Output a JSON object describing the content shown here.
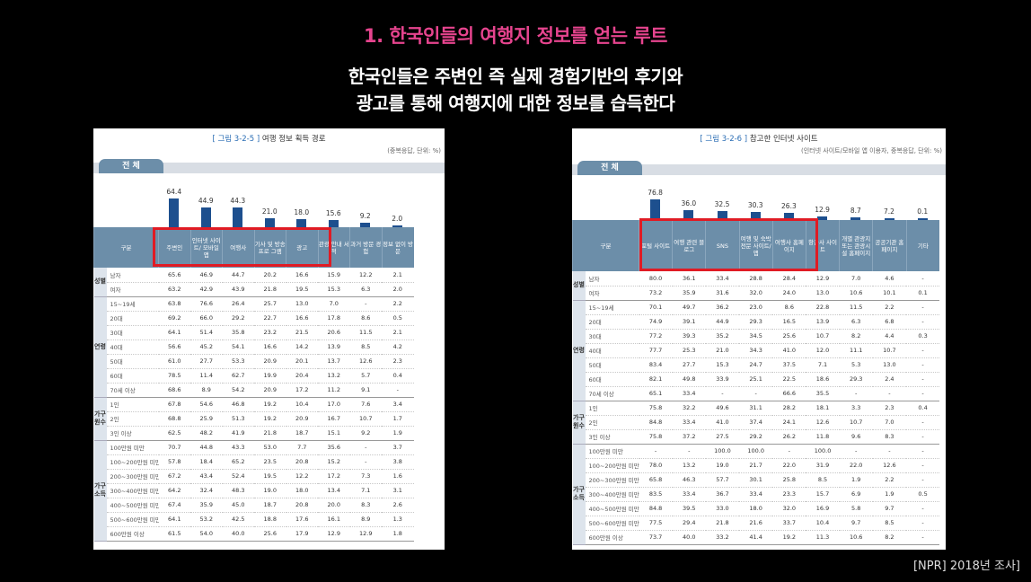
{
  "slide": {
    "title": "1. 한국인들의 여행지 정보를 얻는 루트",
    "subtitle_line1": "한국인들은 주변인 즉 실제 경험기반의 후기와",
    "subtitle_line2": "광고를 통해 여행지에 대한 정보를 습득한다",
    "source": "[NPR] 2018년 조사]"
  },
  "accent_colors": {
    "title": "#e6448e",
    "bar": "#1d4f8e",
    "header": "#6c8ea9",
    "highlight": "#e01b24"
  },
  "left": {
    "fig_num": "[ 그림 3-2-5 ]",
    "fig_title": "여행 정보 획득 경로",
    "unit": "(중복응답, 단위: %)",
    "tab": "전 체",
    "header_label": "구분",
    "columns": [
      "주변인",
      "인터넷 사이트/ 모바일 앱",
      "여행사",
      "기사 및 방송 프로 그램",
      "광고",
      "관광 안내 서적",
      "과거 방문 경험",
      "정보 없이 방문"
    ],
    "totals": [
      "64.4",
      "44.9",
      "44.3",
      "21.0",
      "18.0",
      "15.6",
      "9.2",
      "2.0"
    ],
    "groups": [
      {
        "label": "성별",
        "rows": [
          {
            "label": "남자",
            "values": [
              "65.6",
              "46.9",
              "44.7",
              "20.2",
              "16.6",
              "15.9",
              "12.2",
              "2.1"
            ]
          },
          {
            "label": "여자",
            "values": [
              "63.2",
              "42.9",
              "43.9",
              "21.8",
              "19.5",
              "15.3",
              "6.3",
              "2.0"
            ]
          }
        ]
      },
      {
        "label": "연령",
        "rows": [
          {
            "label": "15~19세",
            "values": [
              "63.8",
              "76.6",
              "26.4",
              "25.7",
              "13.0",
              "7.0",
              "-",
              "2.2"
            ]
          },
          {
            "label": "20대",
            "values": [
              "69.2",
              "66.0",
              "29.2",
              "22.7",
              "16.6",
              "17.8",
              "8.6",
              "0.5"
            ]
          },
          {
            "label": "30대",
            "values": [
              "64.1",
              "51.4",
              "35.8",
              "23.2",
              "21.5",
              "20.6",
              "11.5",
              "2.1"
            ]
          },
          {
            "label": "40대",
            "values": [
              "56.6",
              "45.2",
              "54.1",
              "16.6",
              "14.2",
              "13.9",
              "8.5",
              "4.2"
            ]
          },
          {
            "label": "50대",
            "values": [
              "61.0",
              "27.7",
              "53.3",
              "20.9",
              "20.1",
              "13.7",
              "12.6",
              "2.3"
            ]
          },
          {
            "label": "60대",
            "values": [
              "78.5",
              "11.4",
              "62.7",
              "19.9",
              "20.4",
              "13.2",
              "5.7",
              "0.4"
            ]
          },
          {
            "label": "70세 이상",
            "values": [
              "68.6",
              "8.9",
              "54.2",
              "20.9",
              "17.2",
              "11.2",
              "9.1",
              "-"
            ]
          }
        ]
      },
      {
        "label": "가구원수",
        "rows": [
          {
            "label": "1인",
            "values": [
              "67.8",
              "54.6",
              "46.8",
              "19.2",
              "10.4",
              "17.0",
              "7.6",
              "3.4"
            ]
          },
          {
            "label": "2인",
            "values": [
              "68.8",
              "25.9",
              "51.3",
              "19.2",
              "20.9",
              "16.7",
              "10.7",
              "1.7"
            ]
          },
          {
            "label": "3인 이상",
            "values": [
              "62.5",
              "48.2",
              "41.9",
              "21.8",
              "18.7",
              "15.1",
              "9.2",
              "1.9"
            ]
          }
        ]
      },
      {
        "label": "가구소득",
        "rows": [
          {
            "label": "100만원 미만",
            "values": [
              "70.7",
              "44.8",
              "43.3",
              "53.0",
              "7.7",
              "35.6",
              "-",
              "3.7"
            ]
          },
          {
            "label": "100~200만원 미만",
            "values": [
              "57.8",
              "18.4",
              "65.2",
              "23.5",
              "20.8",
              "15.2",
              "-",
              "3.8"
            ]
          },
          {
            "label": "200~300만원 미만",
            "values": [
              "67.2",
              "43.4",
              "52.4",
              "19.5",
              "12.2",
              "17.2",
              "7.3",
              "1.6"
            ]
          },
          {
            "label": "300~400만원 미만",
            "values": [
              "64.2",
              "32.4",
              "48.3",
              "19.0",
              "18.0",
              "13.4",
              "7.1",
              "3.1"
            ]
          },
          {
            "label": "400~500만원 미만",
            "values": [
              "67.4",
              "35.9",
              "45.0",
              "18.7",
              "20.8",
              "20.0",
              "8.3",
              "2.6"
            ]
          },
          {
            "label": "500~600만원 미만",
            "values": [
              "64.1",
              "53.2",
              "42.5",
              "18.8",
              "17.6",
              "16.1",
              "8.9",
              "1.3"
            ]
          },
          {
            "label": "600만원 이상",
            "values": [
              "61.5",
              "54.0",
              "40.0",
              "25.6",
              "17.9",
              "12.9",
              "12.9",
              "1.8"
            ]
          }
        ]
      }
    ]
  },
  "right": {
    "fig_num": "[ 그림 3-2-6 ]",
    "fig_title": "참고한 인터넷 사이트",
    "unit": "(인터넷 사이트/모바일 앱 이용자, 중복응답, 단위: %)",
    "tab": "전 체",
    "header_label": "구분",
    "columns": [
      "포털 사이트",
      "여행 관련 블로그",
      "SNS",
      "여행 및 숙박 전문 사이트/앱",
      "여행사 홈페이지",
      "항공사 사이트",
      "개별 관광지 또는 관광시설 홈페이지",
      "공공기관 홈페이지",
      "기타"
    ],
    "totals": [
      "76.8",
      "36.0",
      "32.5",
      "30.3",
      "26.3",
      "12.9",
      "8.7",
      "7.2",
      "0.1"
    ],
    "groups": [
      {
        "label": "성별",
        "rows": [
          {
            "label": "남자",
            "values": [
              "80.0",
              "36.1",
              "33.4",
              "28.8",
              "28.4",
              "12.9",
              "7.0",
              "4.6",
              "-"
            ]
          },
          {
            "label": "여자",
            "values": [
              "73.2",
              "35.9",
              "31.6",
              "32.0",
              "24.0",
              "13.0",
              "10.6",
              "10.1",
              "0.1"
            ]
          }
        ]
      },
      {
        "label": "연령",
        "rows": [
          {
            "label": "15~19세",
            "values": [
              "70.1",
              "49.7",
              "36.2",
              "23.0",
              "8.6",
              "22.8",
              "11.5",
              "2.2",
              "-"
            ]
          },
          {
            "label": "20대",
            "values": [
              "74.9",
              "39.1",
              "44.9",
              "29.3",
              "16.5",
              "13.9",
              "6.3",
              "6.8",
              "-"
            ]
          },
          {
            "label": "30대",
            "values": [
              "77.2",
              "39.3",
              "35.2",
              "34.5",
              "25.6",
              "10.7",
              "8.2",
              "4.4",
              "0.3"
            ]
          },
          {
            "label": "40대",
            "values": [
              "77.7",
              "25.3",
              "21.0",
              "34.3",
              "41.0",
              "12.0",
              "11.1",
              "10.7",
              "-"
            ]
          },
          {
            "label": "50대",
            "values": [
              "83.4",
              "27.7",
              "15.3",
              "24.7",
              "37.5",
              "7.1",
              "5.3",
              "13.0",
              "-"
            ]
          },
          {
            "label": "60대",
            "values": [
              "82.1",
              "49.8",
              "33.9",
              "25.1",
              "22.5",
              "18.6",
              "29.3",
              "2.4",
              "-"
            ]
          },
          {
            "label": "70세 이상",
            "values": [
              "65.1",
              "33.4",
              "-",
              "-",
              "66.6",
              "35.5",
              "-",
              "-",
              "-"
            ]
          }
        ]
      },
      {
        "label": "가구원수",
        "rows": [
          {
            "label": "1인",
            "values": [
              "75.8",
              "32.2",
              "49.6",
              "31.1",
              "28.2",
              "18.1",
              "3.3",
              "2.3",
              "0.4"
            ]
          },
          {
            "label": "2인",
            "values": [
              "84.8",
              "33.4",
              "41.0",
              "37.4",
              "24.1",
              "12.6",
              "10.7",
              "7.0",
              "-"
            ]
          },
          {
            "label": "3인 이상",
            "values": [
              "75.8",
              "37.2",
              "27.5",
              "29.2",
              "26.2",
              "11.8",
              "9.6",
              "8.3",
              "-"
            ]
          }
        ]
      },
      {
        "label": "가구소득",
        "rows": [
          {
            "label": "100만원 미만",
            "values": [
              "-",
              "-",
              "100.0",
              "100.0",
              "-",
              "100.0",
              "-",
              "-",
              "-"
            ]
          },
          {
            "label": "100~200만원 미만",
            "values": [
              "78.0",
              "13.2",
              "19.0",
              "21.7",
              "22.0",
              "31.9",
              "22.0",
              "12.6",
              "-"
            ]
          },
          {
            "label": "200~300만원 미만",
            "values": [
              "65.8",
              "46.3",
              "57.7",
              "30.1",
              "25.8",
              "8.5",
              "1.9",
              "2.2",
              "-"
            ]
          },
          {
            "label": "300~400만원 미만",
            "values": [
              "83.5",
              "33.4",
              "36.7",
              "33.4",
              "23.3",
              "15.7",
              "6.9",
              "1.9",
              "0.5"
            ]
          },
          {
            "label": "400~500만원 미만",
            "values": [
              "84.8",
              "39.5",
              "33.0",
              "18.0",
              "32.0",
              "16.9",
              "5.8",
              "9.7",
              "-"
            ]
          },
          {
            "label": "500~600만원 미만",
            "values": [
              "77.5",
              "29.4",
              "21.8",
              "21.6",
              "33.7",
              "10.4",
              "9.7",
              "8.5",
              "-"
            ]
          },
          {
            "label": "600만원 이상",
            "values": [
              "73.7",
              "40.0",
              "33.2",
              "41.4",
              "19.2",
              "11.3",
              "10.6",
              "8.2",
              "-"
            ]
          }
        ]
      }
    ]
  }
}
